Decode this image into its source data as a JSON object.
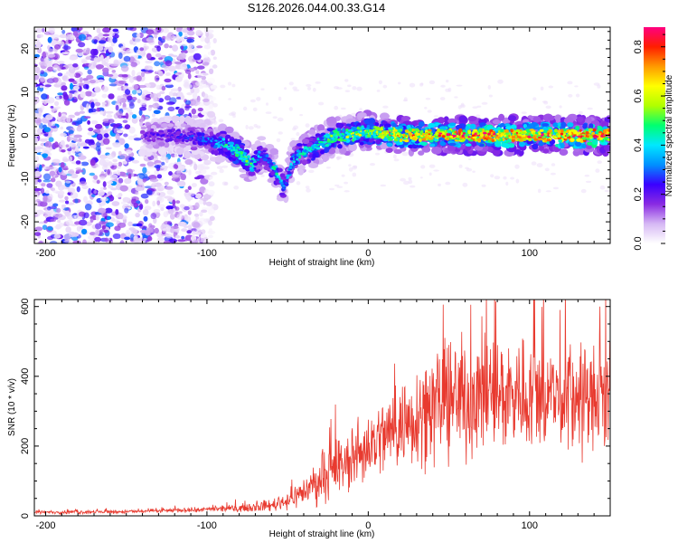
{
  "title": "S126.2026.044.00.33.G14",
  "chart_data": [
    {
      "type": "heatmap",
      "title": "S126.2026.044.00.33.G14",
      "xlabel": "Height of straight line (km)",
      "ylabel": "Frequency (Hz)",
      "xlim": [
        -207,
        150
      ],
      "ylim": [
        -25,
        25
      ],
      "xticks": [
        -200,
        -100,
        0,
        100
      ],
      "xtick_labels": [
        "-200",
        "-100",
        "0",
        "100"
      ],
      "yticks": [
        -20,
        -10,
        0,
        10,
        20
      ],
      "ytick_labels": [
        "-20",
        "-10",
        "0",
        "10",
        "20"
      ],
      "colorbar": {
        "label": "Normalized spectral amplitude",
        "range": [
          0.0,
          0.88
        ],
        "ticks": [
          0.0,
          0.2,
          0.4,
          0.6,
          0.8
        ],
        "tick_labels": [
          "0.0",
          "0.2",
          "0.4",
          "0.6",
          "0.8"
        ],
        "colors": [
          "#ffffff",
          "#d6b8f4",
          "#8a2be2",
          "#3a00ff",
          "#0090ff",
          "#00e8ff",
          "#00ff70",
          "#b0ff00",
          "#ffff00",
          "#ff9a00",
          "#ff1e00",
          "#ff0080"
        ]
      },
      "ridge": {
        "description_x": [
          -140,
          -120,
          -100,
          -90,
          -80,
          -72,
          -65,
          -58,
          -52,
          -47,
          -40,
          -30,
          -20,
          -10,
          0,
          20,
          40,
          60,
          80,
          100,
          120,
          150
        ],
        "center_hz": [
          0,
          0,
          -1,
          -2,
          -4,
          -7,
          -4,
          -8,
          -12,
          -6,
          -4,
          -2,
          0,
          0,
          1,
          0,
          0,
          0,
          0,
          0,
          0,
          0
        ],
        "peak_amplitude": [
          0.2,
          0.25,
          0.3,
          0.45,
          0.55,
          0.5,
          0.3,
          0.45,
          0.35,
          0.4,
          0.45,
          0.5,
          0.55,
          0.6,
          0.6,
          0.75,
          0.8,
          0.85,
          0.85,
          0.8,
          0.85,
          0.88
        ]
      },
      "noise_region_x": [
        -207,
        -95
      ]
    },
    {
      "type": "line",
      "xlabel": "Height of straight line (km)",
      "ylabel": "SNR (10 * v/v)",
      "xlim": [
        -207,
        150
      ],
      "ylim": [
        0,
        620
      ],
      "xticks": [
        -200,
        -100,
        0,
        100
      ],
      "xtick_labels": [
        "-200",
        "-100",
        "0",
        "100"
      ],
      "yticks": [
        0,
        200,
        400,
        600
      ],
      "ytick_labels": [
        "0",
        "200",
        "400",
        "600"
      ],
      "series": [
        {
          "name": "SNR",
          "color": "#e83a2f",
          "envelope_x": [
            -207,
            -150,
            -100,
            -80,
            -60,
            -50,
            -40,
            -30,
            -20,
            -10,
            0,
            10,
            20,
            30,
            40,
            60,
            80,
            100,
            120,
            150
          ],
          "envelope_mean": [
            10,
            12,
            18,
            22,
            30,
            45,
            70,
            100,
            130,
            160,
            200,
            230,
            260,
            290,
            320,
            340,
            350,
            350,
            340,
            330
          ],
          "envelope_spread": [
            8,
            8,
            10,
            15,
            25,
            40,
            60,
            90,
            110,
            130,
            150,
            170,
            190,
            210,
            240,
            250,
            250,
            240,
            240,
            230
          ]
        }
      ]
    }
  ]
}
